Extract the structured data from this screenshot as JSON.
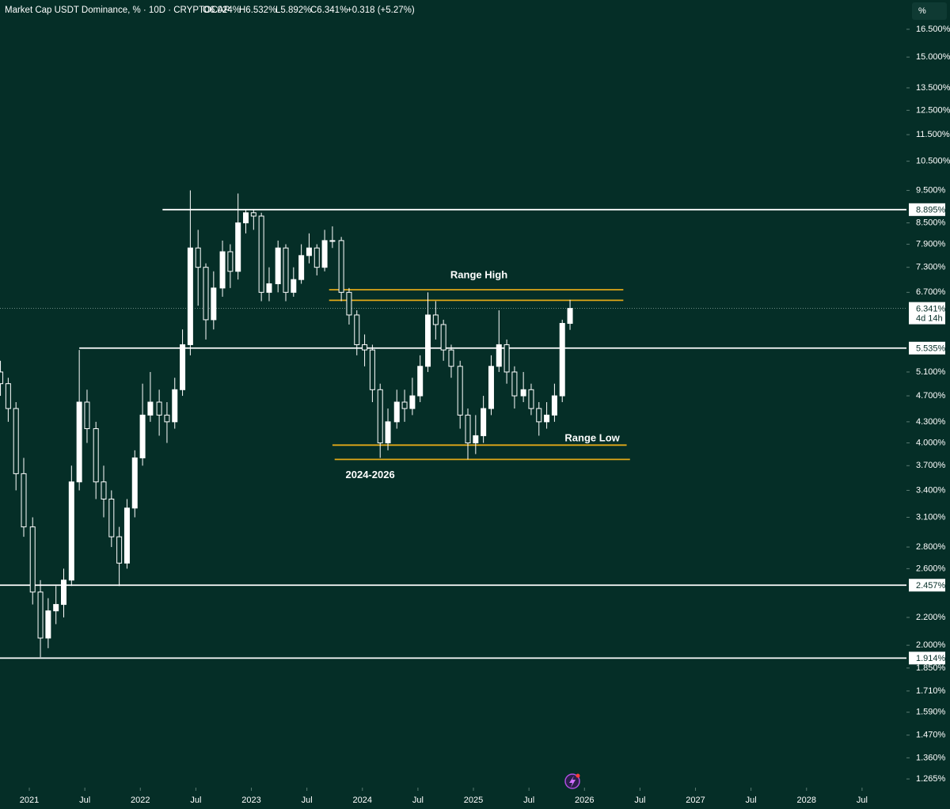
{
  "chart_data": {
    "type": "candlestick",
    "header": {
      "title": "Market Cap USDT Dominance, % · 10D · CRYPTOCAP",
      "ohlc": [
        "O6.024%",
        "H6.532%",
        "L5.892%",
        "C6.341%"
      ],
      "change": "+0.318 (+5.27%)"
    },
    "scale_button": "%",
    "log_scale": true,
    "up_color": "#ffffff",
    "down_color": "#052e27",
    "background": "#052e27",
    "x": [
      2020.74,
      2020.81,
      2020.88,
      2020.95,
      2021.03,
      2021.1,
      2021.17,
      2021.24,
      2021.31,
      2021.38,
      2021.45,
      2021.52,
      2021.6,
      2021.67,
      2021.74,
      2021.81,
      2021.88,
      2021.95,
      2022.02,
      2022.09,
      2022.17,
      2022.24,
      2022.31,
      2022.38,
      2022.45,
      2022.52,
      2022.59,
      2022.66,
      2022.74,
      2022.81,
      2022.88,
      2022.95,
      2023.02,
      2023.09,
      2023.16,
      2023.24,
      2023.31,
      2023.38,
      2023.45,
      2023.52,
      2023.59,
      2023.66,
      2023.73,
      2023.81,
      2023.88,
      2023.95,
      2024.02,
      2024.09,
      2024.16,
      2024.23,
      2024.31,
      2024.38,
      2024.45,
      2024.52,
      2024.59,
      2024.66,
      2024.73,
      2024.8,
      2024.88,
      2024.95,
      2025.02,
      2025.09,
      2025.16,
      2025.23,
      2025.3,
      2025.37,
      2025.45,
      2025.52,
      2025.59,
      2025.66,
      2025.73,
      2025.8,
      2025.87
    ],
    "open": [
      5.1,
      4.9,
      4.5,
      3.6,
      3.0,
      2.4,
      2.05,
      2.25,
      2.3,
      2.5,
      3.5,
      4.6,
      4.2,
      3.5,
      3.3,
      2.9,
      2.65,
      3.2,
      3.8,
      4.4,
      4.6,
      4.4,
      4.3,
      4.8,
      5.6,
      7.8,
      7.3,
      6.1,
      6.8,
      7.7,
      7.2,
      8.5,
      8.8,
      8.7,
      6.7,
      6.9,
      7.8,
      6.7,
      7.0,
      7.6,
      7.8,
      7.3,
      8.0,
      8.0,
      6.7,
      6.2,
      5.6,
      5.5,
      4.8,
      4.0,
      4.3,
      4.6,
      4.5,
      4.7,
      5.2,
      6.2,
      6.0,
      5.5,
      5.2,
      4.4,
      4.0,
      4.1,
      4.5,
      5.2,
      5.6,
      5.1,
      4.7,
      4.8,
      4.5,
      4.3,
      4.4,
      4.7,
      6.024
    ],
    "high": [
      5.3,
      5.0,
      4.6,
      3.8,
      3.1,
      2.5,
      2.35,
      2.45,
      2.6,
      3.7,
      5.5,
      4.8,
      4.3,
      3.7,
      3.4,
      3.0,
      3.3,
      3.9,
      4.9,
      5.1,
      4.8,
      4.6,
      5.0,
      5.9,
      9.5,
      8.3,
      7.4,
      7.2,
      8.0,
      7.9,
      9.4,
      8.9,
      8.9,
      8.8,
      7.3,
      8.0,
      7.9,
      7.3,
      7.9,
      8.2,
      7.9,
      8.3,
      8.4,
      8.1,
      6.8,
      6.3,
      5.8,
      5.6,
      4.9,
      4.5,
      4.8,
      4.8,
      5.0,
      5.4,
      6.7,
      6.5,
      6.1,
      5.6,
      5.3,
      4.5,
      4.4,
      4.7,
      5.4,
      6.3,
      5.7,
      5.2,
      5.1,
      4.9,
      4.6,
      4.6,
      4.9,
      6.1,
      6.532
    ],
    "low": [
      4.7,
      4.3,
      3.4,
      2.9,
      2.3,
      1.92,
      1.98,
      2.15,
      2.2,
      2.45,
      3.4,
      4.0,
      3.3,
      3.1,
      2.8,
      2.45,
      2.6,
      3.1,
      3.7,
      4.3,
      4.1,
      4.0,
      4.2,
      4.7,
      5.4,
      6.4,
      5.7,
      5.9,
      6.6,
      6.8,
      7.0,
      8.2,
      8.3,
      6.5,
      6.5,
      6.7,
      6.5,
      6.6,
      6.9,
      7.4,
      7.1,
      7.2,
      7.8,
      6.5,
      6.0,
      5.4,
      5.2,
      4.6,
      3.8,
      3.9,
      4.2,
      4.3,
      4.4,
      4.6,
      5.1,
      5.7,
      5.3,
      5.0,
      4.2,
      3.78,
      3.85,
      4.0,
      4.4,
      5.1,
      4.9,
      4.5,
      4.6,
      4.4,
      4.1,
      4.2,
      4.3,
      4.6,
      5.892
    ],
    "close": [
      4.9,
      4.5,
      3.6,
      3.0,
      2.4,
      2.05,
      2.25,
      2.3,
      2.5,
      3.5,
      4.6,
      4.2,
      3.5,
      3.3,
      2.9,
      2.65,
      3.2,
      3.8,
      4.4,
      4.6,
      4.4,
      4.3,
      4.8,
      5.6,
      7.8,
      7.3,
      6.1,
      6.8,
      7.7,
      7.2,
      8.5,
      8.8,
      8.7,
      6.7,
      6.9,
      7.8,
      6.7,
      7.0,
      7.6,
      7.8,
      7.3,
      8.0,
      8.0,
      6.7,
      6.2,
      5.6,
      5.5,
      4.8,
      4.0,
      4.3,
      4.6,
      4.5,
      4.7,
      5.2,
      6.2,
      6.0,
      5.5,
      5.2,
      4.4,
      4.0,
      4.1,
      4.5,
      5.2,
      5.6,
      5.1,
      4.7,
      4.8,
      4.5,
      4.3,
      4.4,
      4.7,
      6.024,
      6.341
    ],
    "last_price_label": "6.341%",
    "countdown": "4d 14h",
    "xlim": [
      2020.736,
      2028.9
    ],
    "ylim": [
      1.228,
      18.24
    ],
    "xticks": [
      2021,
      {
        "value": 2021.5,
        "label": "Jul"
      },
      2022,
      {
        "value": 2022.5,
        "label": "Jul"
      },
      2023,
      {
        "value": 2023.5,
        "label": "Jul"
      },
      2024,
      {
        "value": 2024.5,
        "label": "Jul"
      },
      2025,
      {
        "value": 2025.5,
        "label": "Jul"
      },
      2026,
      {
        "value": 2026.5,
        "label": "Jul"
      },
      2027,
      {
        "value": 2027.5,
        "label": "Jul"
      },
      2028,
      {
        "value": 2028.5,
        "label": "Jul"
      }
    ],
    "yticks": [
      {
        "value": 16.5,
        "label": "16.500%"
      },
      {
        "value": 15,
        "label": "15.000%"
      },
      {
        "value": 13.5,
        "label": "13.500%"
      },
      {
        "value": 12.5,
        "label": "12.500%"
      },
      {
        "value": 11.5,
        "label": "11.500%"
      },
      {
        "value": 10.5,
        "label": "10.500%"
      },
      {
        "value": 9.5,
        "label": "9.500%"
      },
      {
        "value": 8.5,
        "label": "8.500%"
      },
      {
        "value": 7.9,
        "label": "7.900%"
      },
      {
        "value": 7.3,
        "label": "7.300%"
      },
      {
        "value": 6.7,
        "label": "6.700%"
      },
      {
        "value": 5.1,
        "label": "5.100%"
      },
      {
        "value": 4.7,
        "label": "4.700%"
      },
      {
        "value": 4.3,
        "label": "4.300%"
      },
      {
        "value": 4.0,
        "label": "4.000%"
      },
      {
        "value": 3.7,
        "label": "3.700%"
      },
      {
        "value": 3.4,
        "label": "3.400%"
      },
      {
        "value": 3.1,
        "label": "3.100%"
      },
      {
        "value": 2.8,
        "label": "2.800%"
      },
      {
        "value": 2.6,
        "label": "2.600%"
      },
      {
        "value": 2.2,
        "label": "2.200%"
      },
      {
        "value": 2.0,
        "label": "2.000%"
      },
      {
        "value": 1.85,
        "label": "1.850%"
      },
      {
        "value": 1.71,
        "label": "1.710%"
      },
      {
        "value": 1.59,
        "label": "1.590%"
      },
      {
        "value": 1.47,
        "label": "1.470%"
      },
      {
        "value": 1.36,
        "label": "1.360%"
      },
      {
        "value": 1.265,
        "label": "1.265%"
      }
    ],
    "levels": [
      {
        "value": 8.895,
        "label": "8.895%",
        "x_start": 2022.2,
        "color": "#ffffff"
      },
      {
        "value": 5.535,
        "label": "5.535%",
        "x_start": 2021.45,
        "color": "#ffffff"
      },
      {
        "value": 2.457,
        "label": "2.457%",
        "x_start": 2020.736,
        "color": "#ffffff"
      },
      {
        "value": 1.914,
        "label": "1.914%",
        "x_start": 2020.736,
        "color": "#ffffff"
      }
    ],
    "range_lines": [
      {
        "value": 6.76,
        "x_start": 2023.7,
        "x_end": 2026.35,
        "color": "#e0a818"
      },
      {
        "value": 6.52,
        "x_start": 2023.7,
        "x_end": 2026.35,
        "color": "#e0a818"
      },
      {
        "value": 3.97,
        "x_start": 2023.73,
        "x_end": 2026.38,
        "color": "#e0a818"
      },
      {
        "value": 3.78,
        "x_start": 2023.75,
        "x_end": 2026.41,
        "color": "#e0a818"
      }
    ],
    "annotations": [
      {
        "text": "Range High",
        "x": 2025.05,
        "y": 7.1
      },
      {
        "text": "Range Low",
        "x": 2026.07,
        "y": 4.06
      },
      {
        "text": "2024-2026",
        "x": 2024.07,
        "y": 3.58
      }
    ]
  }
}
